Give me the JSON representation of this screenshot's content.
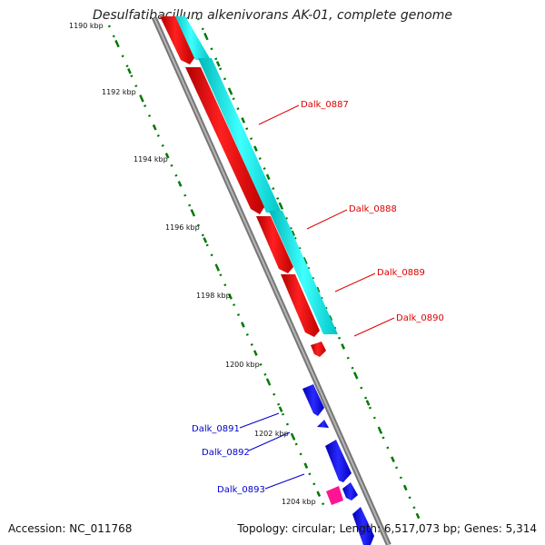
{
  "title": "Desulfatibacillum alkenivorans AK-01, complete genome",
  "footer": {
    "accession": "Accession: NC_011768",
    "summary": "Topology: circular; Length: 6,517,073 bp; Genes: 5,314"
  },
  "scale_ticks": [
    "1190 kbp",
    "1192 kbp",
    "1194 kbp",
    "1196 kbp",
    "1198 kbp",
    "1200 kbp",
    "1202 kbp",
    "1204 kbp"
  ],
  "gene_labels": [
    {
      "name": "Dalk_0887",
      "color": "#dd0000"
    },
    {
      "name": "Dalk_0888",
      "color": "#dd0000"
    },
    {
      "name": "Dalk_0889",
      "color": "#dd0000"
    },
    {
      "name": "Dalk_0890",
      "color": "#dd0000"
    },
    {
      "name": "Dalk_0891",
      "color": "#0000cc"
    },
    {
      "name": "Dalk_0892",
      "color": "#0000cc"
    },
    {
      "name": "Dalk_0893",
      "color": "#0000cc"
    }
  ],
  "colors": {
    "forward_gene": "#ff0000",
    "reverse_gene": "#0000ee",
    "cyan_track": "#00e5e5",
    "pink_feature": "#ff1493",
    "backbone": "#888888",
    "ticks": "#007700"
  }
}
